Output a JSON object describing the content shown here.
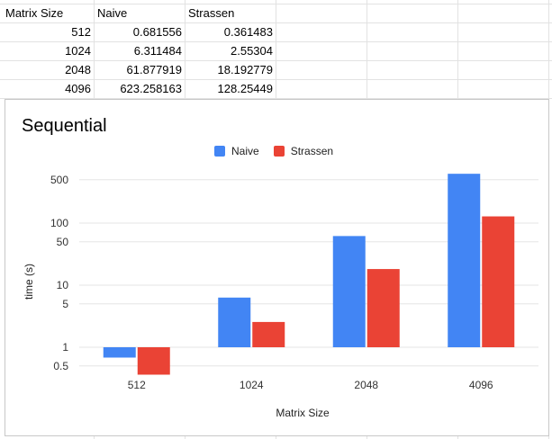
{
  "sheet": {
    "headers": [
      "Matrix Size",
      "Naive",
      "Strassen"
    ],
    "rows": [
      [
        "512",
        "0.681556",
        "0.361483"
      ],
      [
        "1024",
        "6.311484",
        "2.55304"
      ],
      [
        "2048",
        "61.877919",
        "18.192779"
      ],
      [
        "4096",
        "623.258163",
        "128.25449"
      ]
    ]
  },
  "colors": {
    "naive": "#4285f4",
    "strassen": "#ea4335"
  },
  "chart_data": {
    "type": "bar",
    "title": "Sequential",
    "xlabel": "Matrix Size",
    "ylabel": "time (s)",
    "yscale": "log",
    "baseline": 1,
    "ylim": [
      0.35,
      1000
    ],
    "yticks": [
      0.5,
      1,
      5,
      10,
      50,
      100,
      500
    ],
    "ytick_labels": [
      "0.5",
      "1",
      "5",
      "10",
      "50",
      "100",
      "500"
    ],
    "categories": [
      "512",
      "1024",
      "2048",
      "4096"
    ],
    "series": [
      {
        "name": "Naive",
        "values": [
          0.681556,
          6.311484,
          61.877919,
          623.258163
        ]
      },
      {
        "name": "Strassen",
        "values": [
          0.361483,
          2.55304,
          18.192779,
          128.25449
        ]
      }
    ]
  }
}
